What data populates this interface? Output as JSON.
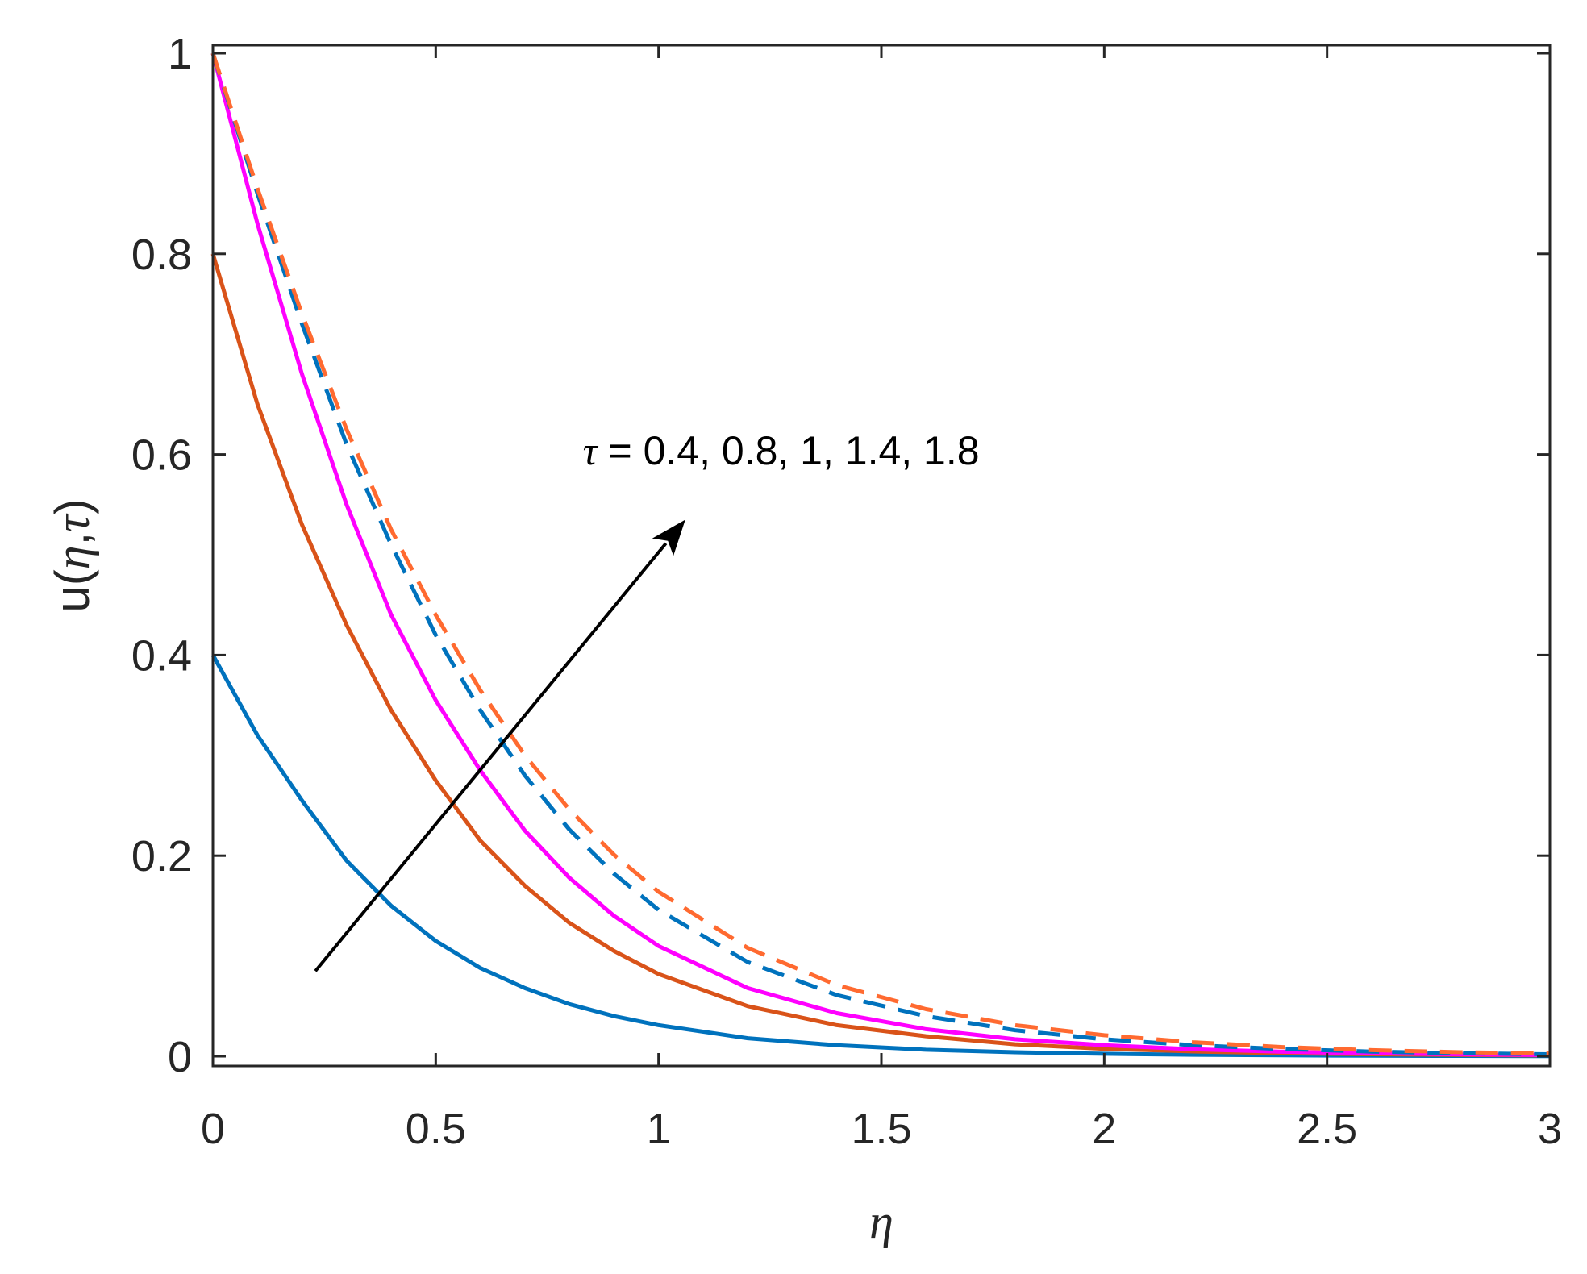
{
  "chart_data": {
    "type": "line",
    "xlabel": "η",
    "ylabel_prefix": "u(",
    "ylabel_eta": "η",
    "ylabel_sep": ",",
    "ylabel_tau": "τ",
    "ylabel_suffix": ")",
    "xlim": [
      0,
      3
    ],
    "ylim": [
      0,
      1
    ],
    "xticks": [
      0,
      0.5,
      1,
      1.5,
      2,
      2.5,
      3
    ],
    "xtick_labels": [
      "0",
      "0.5",
      "1",
      "1.5",
      "2",
      "2.5",
      "3"
    ],
    "yticks": [
      0,
      0.2,
      0.4,
      0.6,
      0.8,
      1
    ],
    "ytick_labels": [
      "0",
      "0.2",
      "0.4",
      "0.6",
      "0.8",
      "1"
    ],
    "grid": false,
    "annotation": {
      "symbol": "τ",
      "text": " = 0.4, 0.8, 1, 1.4, 1.8",
      "arrow_from": [
        0.23,
        0.085
      ],
      "arrow_to": [
        1.06,
        0.535
      ],
      "text_pos": [
        0.83,
        0.59
      ]
    },
    "x": [
      0,
      0.1,
      0.2,
      0.3,
      0.4,
      0.5,
      0.6,
      0.7,
      0.8,
      0.9,
      1.0,
      1.2,
      1.4,
      1.6,
      1.8,
      2.0,
      2.2,
      2.4,
      2.6,
      2.8,
      3.0
    ],
    "series": [
      {
        "color": "#0072BD",
        "dash": "solid",
        "values": [
          0.4,
          0.32,
          0.255,
          0.195,
          0.15,
          0.115,
          0.088,
          0.068,
          0.052,
          0.04,
          0.031,
          0.018,
          0.011,
          0.0065,
          0.004,
          0.0025,
          0.0015,
          0.001,
          0.0006,
          0.0004,
          0.0002
        ]
      },
      {
        "color": "#D95319",
        "dash": "solid",
        "values": [
          0.8,
          0.65,
          0.53,
          0.43,
          0.345,
          0.275,
          0.215,
          0.17,
          0.133,
          0.105,
          0.082,
          0.05,
          0.031,
          0.02,
          0.012,
          0.0075,
          0.0048,
          0.003,
          0.002,
          0.0013,
          0.0009
        ]
      },
      {
        "color": "#FF00FF",
        "dash": "solid",
        "values": [
          1.0,
          0.83,
          0.68,
          0.55,
          0.44,
          0.355,
          0.285,
          0.225,
          0.178,
          0.14,
          0.11,
          0.068,
          0.043,
          0.027,
          0.017,
          0.011,
          0.007,
          0.0045,
          0.003,
          0.0019,
          0.0012
        ]
      },
      {
        "color": "#0072BD",
        "dash": "dashed",
        "values": [
          1.0,
          0.86,
          0.73,
          0.61,
          0.51,
          0.42,
          0.345,
          0.28,
          0.226,
          0.182,
          0.146,
          0.094,
          0.061,
          0.04,
          0.026,
          0.017,
          0.011,
          0.0072,
          0.0047,
          0.003,
          0.002
        ]
      },
      {
        "color": "#FF6A30",
        "dash": "dashed",
        "values": [
          1.0,
          0.865,
          0.74,
          0.625,
          0.525,
          0.44,
          0.365,
          0.3,
          0.246,
          0.201,
          0.164,
          0.108,
          0.071,
          0.047,
          0.031,
          0.021,
          0.014,
          0.0092,
          0.0061,
          0.004,
          0.0027
        ]
      }
    ]
  }
}
